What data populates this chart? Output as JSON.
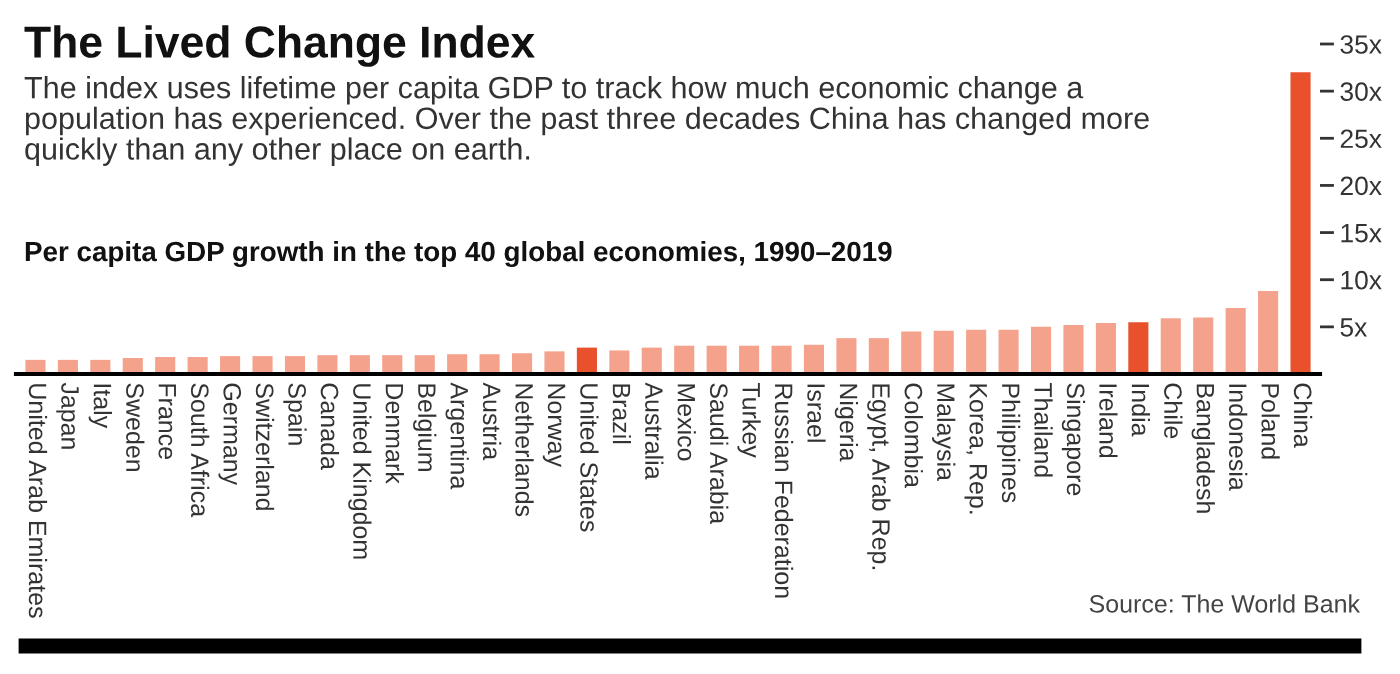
{
  "chart_data": {
    "type": "bar",
    "title": "The Lived Change Index",
    "subtitle": "The index uses lifetime per capita GDP to track how much economic change a population has experienced. Over the past three decades China has changed more quickly than any other place on earth.",
    "xlabel": "Per capita GDP growth in the top 40 global economies, 1990–2019",
    "categories": [
      "United Arab Emirates",
      "Japan",
      "Italy",
      "Sweden",
      "France",
      "South Africa",
      "Germany",
      "Switzerland",
      "Spain",
      "Canada",
      "United Kingdom",
      "Denmark",
      "Belgium",
      "Argentina",
      "Austria",
      "Netherlands",
      "Norway",
      "United States",
      "Brazil",
      "Australia",
      "Mexico",
      "Saudi Arabia",
      "Turkey",
      "Russian Federation",
      "Israel",
      "Nigeria",
      "Egypt, Arab Rep.",
      "Colombia",
      "Malaysia",
      "Korea, Rep.",
      "Philippines",
      "Thailand",
      "Singapore",
      "Ireland",
      "India",
      "Chile",
      "Bangladesh",
      "Indonesia",
      "Poland",
      "China"
    ],
    "values": [
      1.5,
      1.5,
      1.5,
      1.7,
      1.8,
      1.8,
      1.9,
      1.9,
      1.9,
      2.0,
      2.0,
      2.0,
      2.0,
      2.1,
      2.1,
      2.2,
      2.4,
      2.8,
      2.5,
      2.8,
      3.0,
      3.0,
      3.0,
      3.0,
      3.1,
      3.8,
      3.8,
      4.5,
      4.6,
      4.7,
      4.7,
      5.0,
      5.2,
      5.4,
      5.5,
      5.9,
      6.0,
      7.0,
      8.8,
      32
    ],
    "colors": [
      "#f5a28c",
      "#f5a28c",
      "#f5a28c",
      "#f5a28c",
      "#f5a28c",
      "#f5a28c",
      "#f5a28c",
      "#f5a28c",
      "#f5a28c",
      "#f5a28c",
      "#f5a28c",
      "#f5a28c",
      "#f5a28c",
      "#f5a28c",
      "#f5a28c",
      "#f5a28c",
      "#f5a28c",
      "#e8512b",
      "#f5a28c",
      "#f5a28c",
      "#f5a28c",
      "#f5a28c",
      "#f5a28c",
      "#f5a28c",
      "#f5a28c",
      "#f5a28c",
      "#f5a28c",
      "#f5a28c",
      "#f5a28c",
      "#f5a28c",
      "#f5a28c",
      "#f5a28c",
      "#f5a28c",
      "#f5a28c",
      "#e8512b",
      "#f5a28c",
      "#f5a28c",
      "#f5a28c",
      "#f5a28c",
      "#e8512b"
    ],
    "ylim": [
      0,
      35
    ],
    "yticks": [
      {
        "value": 5,
        "label": "5x"
      },
      {
        "value": 10,
        "label": "10x"
      },
      {
        "value": 15,
        "label": "15x"
      },
      {
        "value": 20,
        "label": "20x"
      },
      {
        "value": 25,
        "label": "25x"
      },
      {
        "value": 30,
        "label": "30x"
      },
      {
        "value": 35,
        "label": "35x"
      }
    ],
    "annotations": [
      "Source: The World Bank"
    ]
  }
}
